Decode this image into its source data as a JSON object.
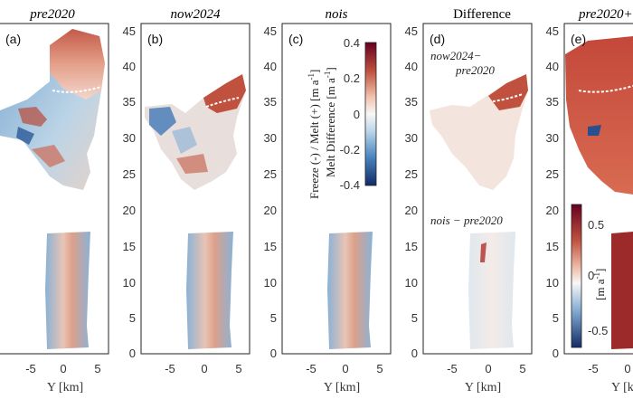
{
  "panels": [
    {
      "id": "a",
      "letter": "(a)",
      "title": "pre2020",
      "title_italic": true,
      "xlabel": "Y [km]"
    },
    {
      "id": "b",
      "letter": "(b)",
      "title": "now2024",
      "title_italic": true,
      "xlabel": ""
    },
    {
      "id": "c",
      "letter": "(c)",
      "title": "nois",
      "title_italic": true,
      "xlabel": "Y [km]"
    },
    {
      "id": "d",
      "letter": "(d)",
      "title": "Difference",
      "title_italic": false,
      "xlabel": "Y [km]"
    },
    {
      "id": "e",
      "letter": "(e)",
      "title": "pre2020+",
      "title_italic": true,
      "xlabel": "Y [km]"
    }
  ],
  "y_ticks": [
    "0",
    "5",
    "10",
    "15",
    "20",
    "25",
    "30",
    "35",
    "40",
    "45"
  ],
  "x_ticks": [
    "-5",
    "0",
    "5"
  ],
  "difference_annotations": {
    "top_line1": "now2024−",
    "top_line2": "pre2020",
    "bottom": "nois − pre2020"
  },
  "colorbar_main": {
    "label_line1": "Freeze (-) / Melt (+) [m a",
    "label_line1_sup": "-1",
    "label_line1_end": "]",
    "label_line2": "Melt Difference [m a",
    "label_line2_sup": "-1",
    "label_line2_end": "]",
    "ticks": [
      "0.4",
      "0.2",
      "0",
      "-0.2",
      "-0.4"
    ]
  },
  "colorbar_e": {
    "label": "[m a",
    "label_sup": "-1",
    "label_end": "]",
    "ticks": [
      "0.5",
      "0",
      "-0.5"
    ]
  },
  "colors": {
    "red_dark": "#7a0f1a",
    "red": "#c0513f",
    "red_light": "#e9a890",
    "white": "#f7f3f0",
    "blue_light": "#a9c8e0",
    "blue": "#4a86bf",
    "blue_dark": "#1a3a7a"
  }
}
